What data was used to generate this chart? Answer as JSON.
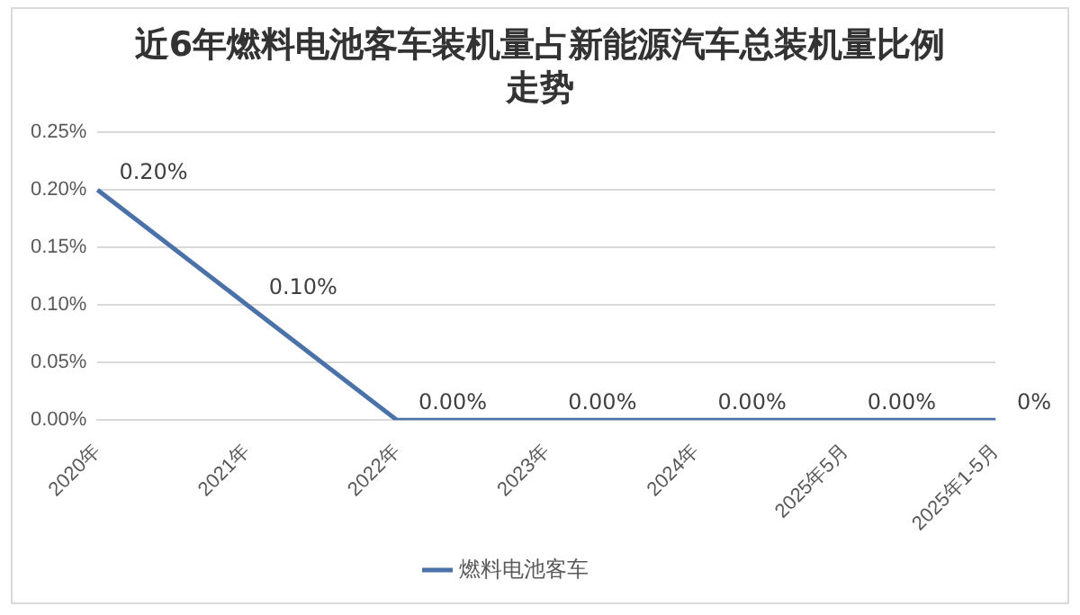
{
  "chart_data": {
    "type": "line",
    "title": "近6年燃料电池客车装机量占新能源汽车总装机量比例走势",
    "categories": [
      "2020年",
      "2021年",
      "2022年",
      "2023年",
      "2024年",
      "2025年5月",
      "2025年1-5月"
    ],
    "series": [
      {
        "name": "燃料电池客车",
        "color": "#4a72a8",
        "values": [
          0.2,
          0.1,
          0,
          0,
          0,
          0,
          0
        ],
        "value_labels": [
          "0.20%",
          "0.10%",
          "0.00%",
          "0.00%",
          "0.00%",
          "0.00%",
          "0%"
        ]
      }
    ],
    "ylim": [
      0,
      0.25
    ],
    "yticks": [
      {
        "value": 0,
        "label": "0.00%"
      },
      {
        "value": 0.05,
        "label": "0.05%"
      },
      {
        "value": 0.1,
        "label": "0.10%"
      },
      {
        "value": 0.15,
        "label": "0.15%"
      },
      {
        "value": 0.2,
        "label": "0.20%"
      },
      {
        "value": 0.25,
        "label": "0.25%"
      }
    ],
    "grid": "y",
    "legend": "bottom",
    "marker": "none",
    "line_style": "solid"
  }
}
